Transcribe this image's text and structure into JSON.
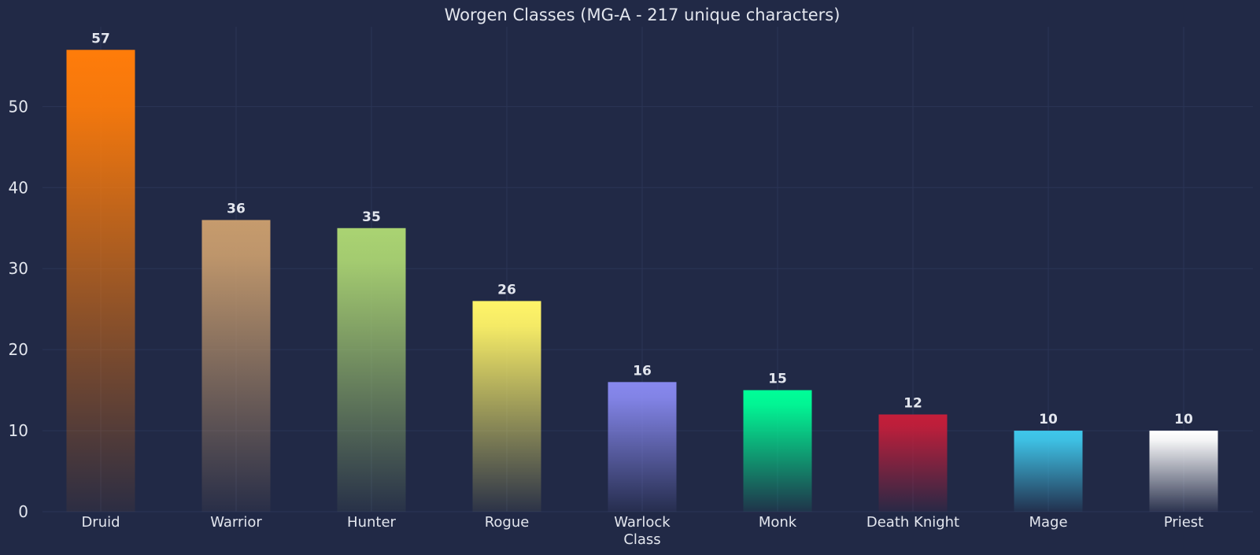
{
  "chart_data": {
    "type": "bar",
    "title": "Worgen Classes (MG-A - 217 unique characters)",
    "xlabel": "Class",
    "ylabel": "",
    "categories": [
      "Druid",
      "Warrior",
      "Hunter",
      "Rogue",
      "Warlock",
      "Monk",
      "Death Knight",
      "Mage",
      "Priest"
    ],
    "values": [
      57,
      36,
      35,
      26,
      16,
      15,
      12,
      10,
      10
    ],
    "colors": [
      "#FF7C0A",
      "#C69B6D",
      "#AAD372",
      "#FFF468",
      "#8788EE",
      "#00FF98",
      "#C41E3A",
      "#3FC7EB",
      "#FFFFFF"
    ],
    "ylim": [
      0,
      59.85
    ],
    "yticks": [
      0,
      10,
      20,
      30,
      40,
      50
    ],
    "grid": true,
    "data_labels": true,
    "background": "#212946",
    "text_color": "#e3e6ee",
    "grid_color": "#2b3556"
  }
}
